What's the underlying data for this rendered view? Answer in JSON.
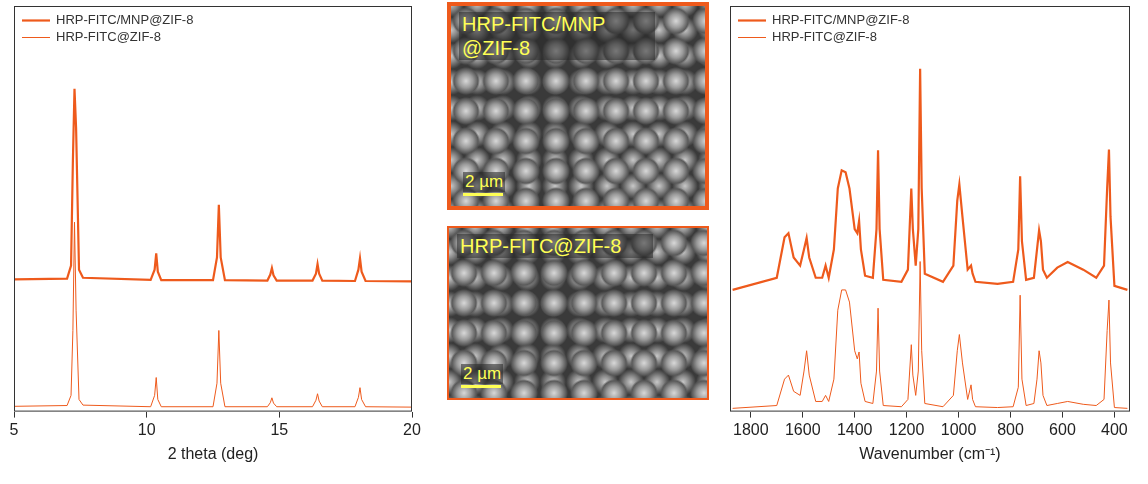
{
  "chart_data": [
    {
      "type": "line",
      "x_label": "2 theta (deg)",
      "x": [
        5,
        7.0,
        7.15,
        7.22,
        7.28,
        7.34,
        7.45,
        7.6,
        10.15,
        10.3,
        10.36,
        10.42,
        10.55,
        12.5,
        12.65,
        12.72,
        12.79,
        12.95,
        14.55,
        14.66,
        14.72,
        14.78,
        14.9,
        16.25,
        16.38,
        16.44,
        16.5,
        16.62,
        17.85,
        17.98,
        18.04,
        18.1,
        18.25,
        20
      ],
      "series": [
        {
          "name": "HRP-FITC/MNP@ZIF-8",
          "color": "#ee5a1c",
          "values": [
            32.6,
            32.8,
            36,
            62,
            79.6,
            70,
            35,
            33,
            32.5,
            35,
            39,
            34.5,
            32.4,
            32.4,
            38,
            51,
            38,
            32.4,
            32.3,
            33.8,
            35.4,
            33.6,
            32.3,
            32.3,
            34,
            36.4,
            34,
            32.3,
            32.2,
            35,
            37.8,
            34.5,
            32.2,
            32.1
          ]
        },
        {
          "name": "HRP-FITC@ZIF-8",
          "color": "#ee5a1c",
          "values": [
            1.3,
            1.5,
            4,
            20,
            46.7,
            25,
            3,
            1.6,
            1.2,
            4,
            8.4,
            3,
            1.2,
            1.2,
            7,
            20,
            7,
            1.2,
            1.2,
            2.2,
            3.4,
            2.1,
            1.2,
            1.2,
            2.8,
            4.4,
            2.6,
            1.2,
            1.2,
            3.5,
            5.9,
            3,
            1.2,
            1.1
          ]
        }
      ],
      "xlim": [
        5,
        20
      ],
      "xticks": [
        5,
        10,
        15,
        20
      ],
      "ylim": [
        0,
        100
      ],
      "tick_labels": "x",
      "grid": false,
      "legend": "upper left"
    },
    {
      "type": "line",
      "x_label": "Wavenumber (cm⁻¹)",
      "x": [
        1870,
        1700,
        1670,
        1655,
        1635,
        1610,
        1595,
        1585,
        1575,
        1550,
        1525,
        1512,
        1500,
        1480,
        1465,
        1450,
        1435,
        1420,
        1400,
        1390,
        1383,
        1376,
        1360,
        1330,
        1316,
        1310,
        1304,
        1290,
        1220,
        1195,
        1182,
        1176,
        1165,
        1155,
        1148,
        1142,
        1130,
        1060,
        1020,
        1005,
        997,
        985,
        965,
        952,
        946,
        935,
        850,
        790,
        770,
        763,
        756,
        740,
        710,
        698,
        690,
        683,
        675,
        660,
        620,
        580,
        520,
        470,
        440,
        428,
        421,
        415,
        400,
        350
      ],
      "series": [
        {
          "name": "HRP-FITC/MNP@ZIF-8",
          "color": "#ee5a1c",
          "values": [
            30,
            33,
            43,
            44,
            38,
            36,
            40,
            42.8,
            38,
            33,
            33,
            36,
            33,
            40,
            55,
            59.5,
            59,
            55,
            45,
            44,
            47,
            40,
            33.5,
            33,
            45,
            64.4,
            45,
            32.5,
            32,
            35,
            55,
            45,
            36,
            45,
            84.5,
            55,
            34,
            32,
            36,
            52,
            56,
            48,
            35,
            36,
            34,
            32,
            31.5,
            32,
            40,
            58,
            42,
            32.5,
            33,
            40,
            44.7,
            42,
            35,
            33,
            35.5,
            36.9,
            35,
            33,
            36,
            55,
            64.6,
            48,
            31,
            30
          ]
        },
        {
          "name": "HRP-FITC@ZIF-8",
          "color": "#ee5a1c",
          "values": [
            0.8,
            1.5,
            8,
            9,
            5,
            4,
            10,
            15,
            9,
            2.5,
            2.5,
            4,
            2.5,
            8,
            25,
            30,
            30,
            27,
            15,
            13,
            14.7,
            7,
            2.5,
            2,
            10,
            25.5,
            10,
            1.5,
            1.2,
            3,
            16.5,
            9,
            4,
            10,
            37,
            15,
            2,
            1.2,
            4,
            15,
            19,
            12,
            3,
            6.6,
            3,
            1.2,
            1,
            1.2,
            6,
            28.7,
            8,
            1.5,
            2,
            8,
            15,
            12,
            4,
            1.5,
            2,
            2.5,
            1.8,
            1.5,
            3,
            20,
            27.5,
            12,
            1,
            0.8
          ]
        }
      ],
      "xlim": [
        1880,
        340
      ],
      "xticks": [
        1800,
        1600,
        1400,
        1200,
        1000,
        800,
        600,
        400
      ],
      "ylim": [
        0,
        100
      ],
      "tick_labels": "x",
      "grid": false,
      "legend": "upper left"
    }
  ],
  "images": [
    {
      "label": "HRP-FITC/MNP@ZIF-8",
      "scale_bar": "2 µm"
    },
    {
      "label": "HRP-FITC@ZIF-8",
      "scale_bar": "2 µm"
    }
  ]
}
